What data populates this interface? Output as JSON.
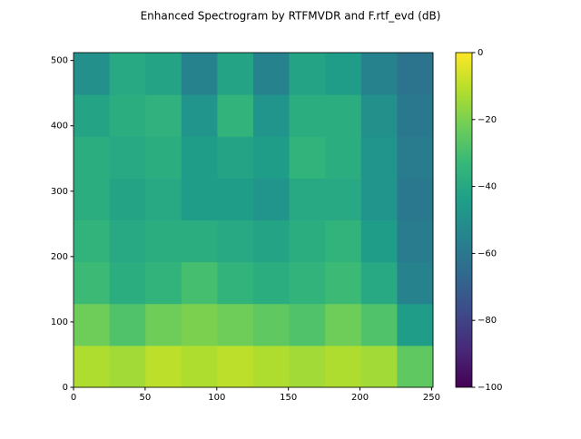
{
  "chart_data": {
    "type": "heatmap",
    "title": "Enhanced Spectrogram by RTFMVDR and F.rtf_evd (dB)",
    "xlim": [
      0,
      251
    ],
    "xticks": [
      0,
      50,
      100,
      150,
      200,
      250
    ],
    "ylim": [
      0,
      512
    ],
    "yticks": [
      0,
      100,
      200,
      300,
      400,
      500
    ],
    "clim": [
      -100,
      0
    ],
    "cticks": [
      0,
      {
        "value": -20,
        "label": "−20"
      },
      {
        "value": -40,
        "label": "−40"
      },
      {
        "value": -60,
        "label": "−60"
      },
      {
        "value": -80,
        "label": "−80"
      },
      {
        "value": -100,
        "label": "−100"
      }
    ],
    "colormap": "viridis",
    "z": [
      [
        -12,
        -14,
        -10,
        -12,
        -10,
        -12,
        -14,
        -12,
        -14,
        -25
      ],
      [
        -22,
        -28,
        -22,
        -20,
        -22,
        -25,
        -28,
        -22,
        -28,
        -45
      ],
      [
        -32,
        -38,
        -35,
        -30,
        -35,
        -38,
        -35,
        -32,
        -40,
        -55
      ],
      [
        -35,
        -40,
        -38,
        -38,
        -40,
        -42,
        -38,
        -35,
        -45,
        -58
      ],
      [
        -38,
        -42,
        -40,
        -45,
        -45,
        -48,
        -40,
        -40,
        -48,
        -60
      ],
      [
        -38,
        -40,
        -38,
        -45,
        -42,
        -45,
        -35,
        -38,
        -48,
        -58
      ],
      [
        -42,
        -38,
        -36,
        -48,
        -35,
        -48,
        -38,
        -38,
        -50,
        -60
      ],
      [
        -50,
        -40,
        -42,
        -55,
        -42,
        -55,
        -42,
        -45,
        -55,
        -62
      ]
    ]
  }
}
